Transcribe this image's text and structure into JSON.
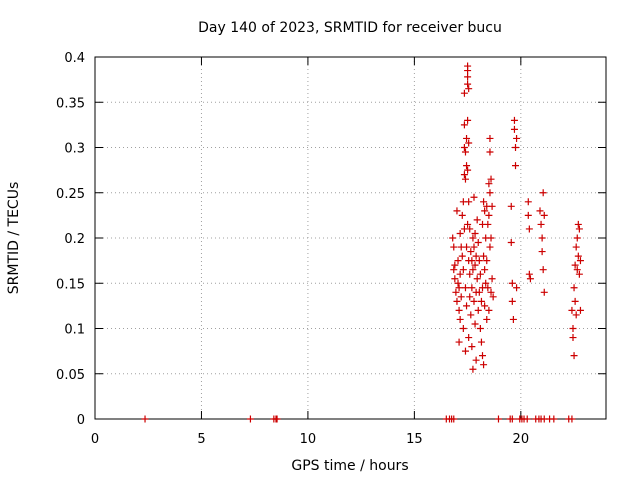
{
  "chart_data": {
    "type": "scatter",
    "title": "Day 140 of 2023, SRMTID for receiver bucu",
    "xlabel": "GPS time / hours",
    "ylabel": "SRMTID / TECUs",
    "xlim": [
      0,
      24
    ],
    "ylim": [
      0,
      0.4
    ],
    "xticks": [
      0,
      5,
      10,
      15,
      20
    ],
    "xtick_labels": [
      "0",
      "5",
      "10",
      "15",
      "20"
    ],
    "yticks": [
      0,
      0.05,
      0.1,
      0.15,
      0.2,
      0.25,
      0.3,
      0.35,
      0.4
    ],
    "ytick_labels": [
      "0",
      "0.05",
      "0.1",
      "0.15",
      "0.2",
      "0.25",
      "0.3",
      "0.35",
      "0.4"
    ],
    "grid": true,
    "marker": "plus",
    "color": "#cc0000",
    "series": [
      {
        "name": "SRMTID",
        "points": [
          [
            2.35,
            0
          ],
          [
            7.3,
            0
          ],
          [
            8.4,
            0
          ],
          [
            8.5,
            0
          ],
          [
            8.55,
            0
          ],
          [
            16.5,
            0
          ],
          [
            16.65,
            0
          ],
          [
            16.75,
            0
          ],
          [
            16.85,
            0
          ],
          [
            18.95,
            0
          ],
          [
            19.5,
            0
          ],
          [
            19.6,
            0
          ],
          [
            19.95,
            0
          ],
          [
            20.05,
            0
          ],
          [
            20.15,
            0
          ],
          [
            20.3,
            0
          ],
          [
            20.7,
            0
          ],
          [
            20.85,
            0
          ],
          [
            20.95,
            0
          ],
          [
            21.1,
            0
          ],
          [
            21.35,
            0
          ],
          [
            21.55,
            0
          ],
          [
            22.25,
            0
          ],
          [
            22.4,
            0
          ],
          [
            16.8,
            0.2
          ],
          [
            16.85,
            0.19
          ],
          [
            16.85,
            0.165
          ],
          [
            16.9,
            0.17
          ],
          [
            16.9,
            0.155
          ],
          [
            16.95,
            0.14
          ],
          [
            17.0,
            0.23
          ],
          [
            17.0,
            0.13
          ],
          [
            17.05,
            0.175
          ],
          [
            17.05,
            0.15
          ],
          [
            17.1,
            0.145
          ],
          [
            17.1,
            0.12
          ],
          [
            17.1,
            0.085
          ],
          [
            17.15,
            0.205
          ],
          [
            17.15,
            0.16
          ],
          [
            17.15,
            0.11
          ],
          [
            17.2,
            0.19
          ],
          [
            17.2,
            0.135
          ],
          [
            17.25,
            0.225
          ],
          [
            17.25,
            0.18
          ],
          [
            17.3,
            0.24
          ],
          [
            17.3,
            0.165
          ],
          [
            17.3,
            0.1
          ],
          [
            17.35,
            0.36
          ],
          [
            17.35,
            0.325
          ],
          [
            17.35,
            0.3
          ],
          [
            17.35,
            0.27
          ],
          [
            17.35,
            0.21
          ],
          [
            17.4,
            0.295
          ],
          [
            17.4,
            0.265
          ],
          [
            17.4,
            0.145
          ],
          [
            17.4,
            0.075
          ],
          [
            17.45,
            0.31
          ],
          [
            17.45,
            0.28
          ],
          [
            17.45,
            0.19
          ],
          [
            17.45,
            0.125
          ],
          [
            17.5,
            0.39
          ],
          [
            17.5,
            0.385
          ],
          [
            17.5,
            0.378
          ],
          [
            17.5,
            0.37
          ],
          [
            17.5,
            0.33
          ],
          [
            17.5,
            0.275
          ],
          [
            17.5,
            0.215
          ],
          [
            17.55,
            0.365
          ],
          [
            17.55,
            0.305
          ],
          [
            17.55,
            0.24
          ],
          [
            17.55,
            0.175
          ],
          [
            17.55,
            0.09
          ],
          [
            17.6,
            0.21
          ],
          [
            17.6,
            0.16
          ],
          [
            17.6,
            0.135
          ],
          [
            17.65,
            0.185
          ],
          [
            17.65,
            0.115
          ],
          [
            17.7,
            0.175
          ],
          [
            17.7,
            0.145
          ],
          [
            17.7,
            0.08
          ],
          [
            17.75,
            0.2
          ],
          [
            17.75,
            0.165
          ],
          [
            17.75,
            0.055
          ],
          [
            17.8,
            0.245
          ],
          [
            17.8,
            0.19
          ],
          [
            17.8,
            0.13
          ],
          [
            17.85,
            0.205
          ],
          [
            17.85,
            0.17
          ],
          [
            17.85,
            0.105
          ],
          [
            17.9,
            0.18
          ],
          [
            17.9,
            0.14
          ],
          [
            17.9,
            0.065
          ],
          [
            17.95,
            0.22
          ],
          [
            17.95,
            0.155
          ],
          [
            18.0,
            0.195
          ],
          [
            18.0,
            0.12
          ],
          [
            18.05,
            0.175
          ],
          [
            18.05,
            0.14
          ],
          [
            18.1,
            0.16
          ],
          [
            18.1,
            0.1
          ],
          [
            18.15,
            0.13
          ],
          [
            18.15,
            0.085
          ],
          [
            18.2,
            0.215
          ],
          [
            18.2,
            0.145
          ],
          [
            18.2,
            0.07
          ],
          [
            18.25,
            0.24
          ],
          [
            18.25,
            0.18
          ],
          [
            18.25,
            0.06
          ],
          [
            18.3,
            0.23
          ],
          [
            18.3,
            0.165
          ],
          [
            18.3,
            0.125
          ],
          [
            18.35,
            0.2
          ],
          [
            18.35,
            0.15
          ],
          [
            18.4,
            0.235
          ],
          [
            18.4,
            0.175
          ],
          [
            18.4,
            0.11
          ],
          [
            18.45,
            0.215
          ],
          [
            18.45,
            0.145
          ],
          [
            18.5,
            0.26
          ],
          [
            18.5,
            0.225
          ],
          [
            18.5,
            0.12
          ],
          [
            18.55,
            0.31
          ],
          [
            18.55,
            0.295
          ],
          [
            18.55,
            0.25
          ],
          [
            18.55,
            0.19
          ],
          [
            18.6,
            0.265
          ],
          [
            18.6,
            0.2
          ],
          [
            18.6,
            0.14
          ],
          [
            18.65,
            0.235
          ],
          [
            18.65,
            0.155
          ],
          [
            18.7,
            0.135
          ],
          [
            19.55,
            0.235
          ],
          [
            19.55,
            0.195
          ],
          [
            19.6,
            0.15
          ],
          [
            19.6,
            0.13
          ],
          [
            19.65,
            0.11
          ],
          [
            19.7,
            0.33
          ],
          [
            19.7,
            0.32
          ],
          [
            19.75,
            0.3
          ],
          [
            19.75,
            0.28
          ],
          [
            19.8,
            0.31
          ],
          [
            19.8,
            0.145
          ],
          [
            20.35,
            0.24
          ],
          [
            20.35,
            0.225
          ],
          [
            20.4,
            0.21
          ],
          [
            20.4,
            0.16
          ],
          [
            20.45,
            0.155
          ],
          [
            20.9,
            0.23
          ],
          [
            20.95,
            0.215
          ],
          [
            21.0,
            0.2
          ],
          [
            21.0,
            0.185
          ],
          [
            21.05,
            0.165
          ],
          [
            21.05,
            0.25
          ],
          [
            21.1,
            0.225
          ],
          [
            21.1,
            0.14
          ],
          [
            22.4,
            0.12
          ],
          [
            22.45,
            0.1
          ],
          [
            22.45,
            0.09
          ],
          [
            22.5,
            0.07
          ],
          [
            22.5,
            0.145
          ],
          [
            22.55,
            0.17
          ],
          [
            22.55,
            0.13
          ],
          [
            22.6,
            0.19
          ],
          [
            22.6,
            0.115
          ],
          [
            22.65,
            0.2
          ],
          [
            22.65,
            0.165
          ],
          [
            22.7,
            0.215
          ],
          [
            22.7,
            0.18
          ],
          [
            22.75,
            0.21
          ],
          [
            22.75,
            0.16
          ],
          [
            22.8,
            0.175
          ],
          [
            22.8,
            0.12
          ]
        ]
      }
    ]
  }
}
